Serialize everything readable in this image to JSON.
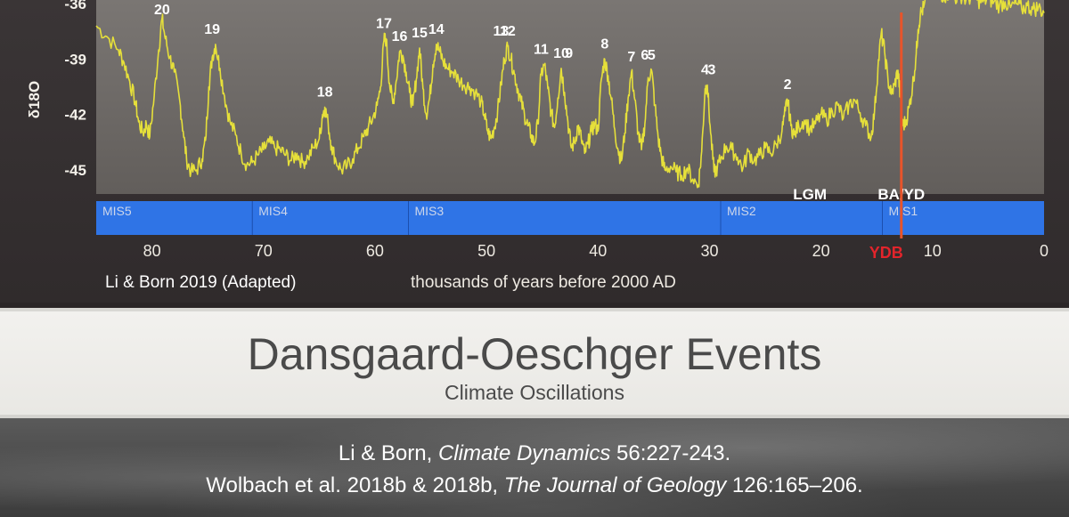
{
  "chart_data": {
    "type": "line",
    "ylabel": "δ18O",
    "y_ticks": [
      "-36",
      "-39",
      "-42",
      "-45"
    ],
    "y_tick_values": [
      -36,
      -39,
      -42,
      -45
    ],
    "ylim": [
      -46.3,
      -35.8
    ],
    "xlim": [
      85,
      0
    ],
    "x_reversed": true,
    "xlabel": "thousands of years before 2000 AD",
    "x_ticks": [
      "80",
      "70",
      "60",
      "50",
      "40",
      "30",
      "20",
      "10",
      "0"
    ],
    "x_tick_values": [
      80,
      70,
      60,
      50,
      40,
      30,
      20,
      10,
      0
    ],
    "ydb_label": "YDB",
    "ydb_x": 12.8,
    "series": [
      {
        "color": "#e6e03a",
        "points": [
          [
            85,
            -37.2
          ],
          [
            84,
            -37.8
          ],
          [
            83,
            -38.5
          ],
          [
            82.5,
            -39.2
          ],
          [
            82,
            -40.2
          ],
          [
            81.5,
            -41.3
          ],
          [
            81.2,
            -42.4
          ],
          [
            80.8,
            -43.0
          ],
          [
            80.5,
            -42.5
          ],
          [
            80.2,
            -43.2
          ],
          [
            79.8,
            -41.0
          ],
          [
            79.4,
            -38.5
          ],
          [
            79.1,
            -36.8
          ],
          [
            78.8,
            -37.9
          ],
          [
            78.4,
            -38.9
          ],
          [
            78,
            -39.7
          ],
          [
            77.5,
            -41.3
          ],
          [
            77.2,
            -42.9
          ],
          [
            76.9,
            -44.4
          ],
          [
            76.5,
            -45.1
          ],
          [
            76,
            -45.0
          ],
          [
            75.5,
            -44.4
          ],
          [
            75.2,
            -43.4
          ],
          [
            74.9,
            -40.5
          ],
          [
            74.6,
            -38.9
          ],
          [
            74.3,
            -38.2
          ],
          [
            73.9,
            -39.5
          ],
          [
            73.5,
            -41.0
          ],
          [
            73,
            -42.4
          ],
          [
            72.5,
            -43.1
          ],
          [
            72,
            -44.1
          ],
          [
            71.5,
            -44.7
          ],
          [
            71,
            -44.6
          ],
          [
            70.5,
            -44.2
          ],
          [
            70,
            -43.9
          ],
          [
            69.5,
            -43.5
          ],
          [
            69,
            -43.8
          ],
          [
            68.5,
            -43.9
          ],
          [
            68,
            -44.2
          ],
          [
            67.5,
            -44.5
          ],
          [
            67,
            -44.1
          ],
          [
            66.5,
            -44.6
          ],
          [
            66,
            -44.3
          ],
          [
            65.5,
            -43.8
          ],
          [
            65,
            -43.3
          ],
          [
            64.7,
            -42.0
          ],
          [
            64.5,
            -41.6
          ],
          [
            64.2,
            -42.5
          ],
          [
            63.9,
            -43.7
          ],
          [
            63.5,
            -44.5
          ],
          [
            63,
            -45.0
          ],
          [
            62.5,
            -44.8
          ],
          [
            62,
            -44.4
          ],
          [
            61.5,
            -43.8
          ],
          [
            61,
            -43.2
          ],
          [
            60.6,
            -42.7
          ],
          [
            60.2,
            -42.2
          ],
          [
            59.8,
            -41.5
          ],
          [
            59.5,
            -40.5
          ],
          [
            59.2,
            -38.0
          ],
          [
            59,
            -37.9
          ],
          [
            58.7,
            -40.3
          ],
          [
            58.4,
            -41.4
          ],
          [
            58.1,
            -40.2
          ],
          [
            57.8,
            -38.6
          ],
          [
            57.5,
            -38.8
          ],
          [
            57.2,
            -39.7
          ],
          [
            56.9,
            -40.8
          ],
          [
            56.6,
            -41.5
          ],
          [
            56.3,
            -40.1
          ],
          [
            56,
            -38.4
          ],
          [
            55.7,
            -40.6
          ],
          [
            55.4,
            -42.0
          ],
          [
            55.1,
            -41.1
          ],
          [
            54.8,
            -39.3
          ],
          [
            54.5,
            -38.2
          ],
          [
            54.2,
            -38.6
          ],
          [
            53.9,
            -39.1
          ],
          [
            53.5,
            -39.5
          ],
          [
            53,
            -39.7
          ],
          [
            52.5,
            -40.1
          ],
          [
            52,
            -40.4
          ],
          [
            51.5,
            -40.5
          ],
          [
            51,
            -40.8
          ],
          [
            50.5,
            -41.3
          ],
          [
            50.2,
            -42.0
          ],
          [
            49.9,
            -42.9
          ],
          [
            49.6,
            -43.3
          ],
          [
            49.3,
            -42.7
          ],
          [
            49,
            -41.8
          ],
          [
            48.7,
            -40.4
          ],
          [
            48.4,
            -39.0
          ],
          [
            48.1,
            -38.3
          ],
          [
            47.8,
            -39.0
          ],
          [
            47.5,
            -39.8
          ],
          [
            47.2,
            -40.6
          ],
          [
            46.9,
            -41.3
          ],
          [
            46.6,
            -42.0
          ],
          [
            46.3,
            -42.6
          ],
          [
            46,
            -43.1
          ],
          [
            45.7,
            -43.6
          ],
          [
            45.4,
            -42.5
          ],
          [
            45.1,
            -39.8
          ],
          [
            44.8,
            -39.3
          ],
          [
            44.5,
            -40.6
          ],
          [
            44.2,
            -41.9
          ],
          [
            43.9,
            -42.7
          ],
          [
            43.6,
            -41.1
          ],
          [
            43.3,
            -39.5
          ],
          [
            43,
            -40.8
          ],
          [
            42.7,
            -42.4
          ],
          [
            42.4,
            -43.8
          ],
          [
            42.1,
            -43.5
          ],
          [
            41.8,
            -42.6
          ],
          [
            41.5,
            -43.3
          ],
          [
            41.2,
            -44.1
          ],
          [
            40.9,
            -43.6
          ],
          [
            40.6,
            -42.9
          ],
          [
            40.3,
            -42.5
          ],
          [
            40,
            -42.9
          ],
          [
            39.7,
            -40.1
          ],
          [
            39.4,
            -39.0
          ],
          [
            39.1,
            -39.9
          ],
          [
            38.8,
            -41.2
          ],
          [
            38.5,
            -42.8
          ],
          [
            38.2,
            -43.9
          ],
          [
            37.9,
            -44.5
          ],
          [
            37.6,
            -43.0
          ],
          [
            37.3,
            -41.1
          ],
          [
            37,
            -39.7
          ],
          [
            36.7,
            -41.2
          ],
          [
            36.4,
            -43.0
          ],
          [
            36.1,
            -43.9
          ],
          [
            35.8,
            -42.5
          ],
          [
            35.5,
            -40.0
          ],
          [
            35.2,
            -39.6
          ],
          [
            34.9,
            -41.5
          ],
          [
            34.6,
            -43.3
          ],
          [
            34.3,
            -44.3
          ],
          [
            34,
            -45.0
          ],
          [
            33.5,
            -44.8
          ],
          [
            33,
            -45.1
          ],
          [
            32.5,
            -45.3
          ],
          [
            32,
            -44.9
          ],
          [
            31.5,
            -45.5
          ],
          [
            31,
            -45.8
          ],
          [
            30.7,
            -44.0
          ],
          [
            30.4,
            -40.6
          ],
          [
            30.2,
            -40.4
          ],
          [
            29.9,
            -43.0
          ],
          [
            29.6,
            -45.1
          ],
          [
            29.3,
            -44.9
          ],
          [
            29,
            -44.4
          ],
          [
            28.5,
            -43.7
          ],
          [
            28,
            -43.9
          ],
          [
            27.5,
            -44.3
          ],
          [
            27,
            -44.9
          ],
          [
            26.5,
            -44.0
          ],
          [
            26,
            -44.5
          ],
          [
            25.5,
            -44.2
          ],
          [
            25,
            -43.8
          ],
          [
            24.5,
            -44.1
          ],
          [
            24,
            -43.6
          ],
          [
            23.5,
            -42.9
          ],
          [
            23.2,
            -41.8
          ],
          [
            23,
            -41.2
          ],
          [
            22.7,
            -42.6
          ],
          [
            22.4,
            -43.1
          ],
          [
            22,
            -42.6
          ],
          [
            21.5,
            -42.3
          ],
          [
            21,
            -42.8
          ],
          [
            20.5,
            -42.5
          ],
          [
            20,
            -42.0
          ],
          [
            19.5,
            -42.3
          ],
          [
            19,
            -41.8
          ],
          [
            18.5,
            -41.5
          ],
          [
            18,
            -42.2
          ],
          [
            17.5,
            -41.5
          ],
          [
            17,
            -41.2
          ],
          [
            16.5,
            -41.9
          ],
          [
            16,
            -42.6
          ],
          [
            15.5,
            -43.2
          ],
          [
            15.2,
            -41.8
          ],
          [
            14.9,
            -39.5
          ],
          [
            14.6,
            -37.6
          ],
          [
            14.3,
            -38.6
          ],
          [
            14,
            -40.1
          ],
          [
            13.7,
            -40.9
          ],
          [
            13.4,
            -40.4
          ],
          [
            13.1,
            -39.6
          ],
          [
            12.9,
            -41.0
          ],
          [
            12.7,
            -42.6
          ],
          [
            12.4,
            -42.4
          ],
          [
            12.1,
            -41.6
          ],
          [
            11.8,
            -40.5
          ],
          [
            11.5,
            -39.0
          ],
          [
            11.3,
            -37.4
          ],
          [
            11.1,
            -36.6
          ],
          [
            10.8,
            -36.2
          ],
          [
            10.4,
            -35.6
          ],
          [
            10,
            -35.2
          ],
          [
            9.5,
            -35.3
          ],
          [
            9,
            -35.6
          ],
          [
            8.5,
            -35.4
          ],
          [
            8,
            -35.7
          ],
          [
            7.5,
            -35.5
          ],
          [
            7,
            -35.8
          ],
          [
            6.5,
            -35.6
          ],
          [
            6,
            -35.8
          ],
          [
            5.5,
            -35.9
          ],
          [
            5,
            -35.7
          ],
          [
            4.5,
            -35.9
          ],
          [
            4,
            -36.1
          ],
          [
            3.5,
            -35.9
          ],
          [
            3,
            -36.2
          ],
          [
            2.5,
            -36.0
          ],
          [
            2,
            -36.3
          ],
          [
            1.5,
            -36.1
          ],
          [
            1,
            -36.3
          ],
          [
            0.5,
            -36.2
          ],
          [
            0,
            -36.5
          ]
        ]
      }
    ],
    "do_events": [
      {
        "label": "20",
        "x": 79.1
      },
      {
        "label": "19",
        "x": 74.6
      },
      {
        "label": "18",
        "x": 64.5
      },
      {
        "label": "17",
        "x": 59.2
      },
      {
        "label": "16",
        "x": 57.8
      },
      {
        "label": "15",
        "x": 56.0
      },
      {
        "label": "14",
        "x": 54.5
      },
      {
        "label": "13",
        "x": 48.7
      },
      {
        "label": "12",
        "x": 48.1
      },
      {
        "label": "11",
        "x": 45.1
      },
      {
        "label": "10",
        "x": 43.3
      },
      {
        "label": "9",
        "x": 42.6
      },
      {
        "label": "8",
        "x": 39.4
      },
      {
        "label": "7",
        "x": 37.0
      },
      {
        "label": "6",
        "x": 35.8
      },
      {
        "label": "5",
        "x": 35.2
      },
      {
        "label": "4",
        "x": 30.4
      },
      {
        "label": "3",
        "x": 29.8
      },
      {
        "label": "2",
        "x": 23.0
      }
    ],
    "stages": [
      {
        "label": "MIS5",
        "start": 85,
        "end": 71
      },
      {
        "label": "MIS4",
        "start": 71,
        "end": 57
      },
      {
        "label": "MIS3",
        "start": 57,
        "end": 29
      },
      {
        "label": "MIS2",
        "start": 29,
        "end": 14.5
      },
      {
        "label": "MIS1",
        "start": 14.5,
        "end": 0
      }
    ],
    "annotations": [
      {
        "label": "LGM",
        "x": 21
      },
      {
        "label": "BA/YD",
        "x": 12.8
      }
    ],
    "colors": {
      "line": "#e6e03a",
      "plot_bg": "#6c6865",
      "stage_band": "#2f74e6",
      "ydb_line": "#e8542a",
      "ydb_text": "#e3242b"
    }
  },
  "source_note": "Li & Born 2019 (Adapted)",
  "slide": {
    "title": "Dansgaard-Oeschger Events",
    "subtitle": "Climate Oscillations"
  },
  "refs": {
    "ref1_authors": "Li & Born, ",
    "ref1_journal": "Climate Dynamics",
    "ref1_tail": " 56:227-243.",
    "ref2_authors": "Wolbach et al. 2018b & 2018b, ",
    "ref2_journal": "The Journal of Geology",
    "ref2_tail": " 126:165–206."
  }
}
